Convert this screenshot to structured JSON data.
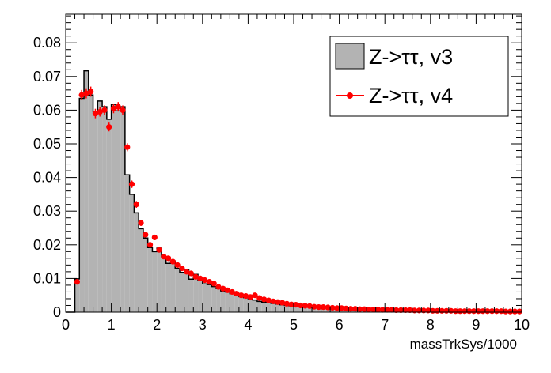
{
  "chart_data": {
    "type": "histogram",
    "xlabel": "massTrkSys/1000",
    "ylabel": "",
    "title": "",
    "xlim": [
      0,
      10
    ],
    "ylim": [
      0,
      0.0885
    ],
    "xticks": [
      "0",
      "1",
      "2",
      "3",
      "4",
      "5",
      "6",
      "7",
      "8",
      "9",
      "10"
    ],
    "yticks": [
      "0",
      "0.01",
      "0.02",
      "0.03",
      "0.04",
      "0.05",
      "0.06",
      "0.07",
      "0.08"
    ],
    "grid": false,
    "legend_position": "top-right",
    "bin_width": 0.1,
    "x_start": 0,
    "series": [
      {
        "name": "Z->ττ, v3",
        "style": "filled-step",
        "fill_color": "#b3b3b3",
        "line_color": "#000000",
        "values": [
          0,
          0,
          0.0099,
          0.0635,
          0.0717,
          0.0645,
          0.0595,
          0.0627,
          0.061,
          0.0573,
          0.0617,
          0.0598,
          0.061,
          0.0408,
          0.035,
          0.0295,
          0.0248,
          0.022,
          0.0192,
          0.018,
          0.019,
          0.0165,
          0.0145,
          0.0152,
          0.013,
          0.0118,
          0.0125,
          0.0098,
          0.0112,
          0.0094,
          0.0084,
          0.0082,
          0.0076,
          0.007,
          0.0063,
          0.006,
          0.0055,
          0.005,
          0.0046,
          0.0043,
          0.004,
          0.0036,
          0.0032,
          0.003,
          0.0028,
          0.0026,
          0.0024,
          0.0022,
          0.002,
          0.0019,
          0.0018,
          0.0017,
          0.0016,
          0.0015,
          0.0014,
          0.0013,
          0.0012,
          0.0012,
          0.0011,
          0.0011,
          0.001,
          0.001,
          0.0009,
          0.0009,
          0.0008,
          0.0008,
          0.0008,
          0.0007,
          0.0007,
          0.0007,
          0.0006,
          0.0006,
          0.0006,
          0.0006,
          0.0005,
          0.0005,
          0.0005,
          0.0005,
          0.0005,
          0.0004,
          0.0004,
          0.0004,
          0.0004,
          0.0004,
          0.0004,
          0.0003,
          0.0003,
          0.0003,
          0.0003,
          0.0003,
          0.0003,
          0.0003,
          0.0003,
          0.0003,
          0.0002,
          0.0002,
          0.0002,
          0.0002,
          0.0002,
          0.0002
        ]
      },
      {
        "name": "Z->ττ, v4",
        "style": "markers-errorbars",
        "color": "#ff0000",
        "values": [
          0,
          0,
          0.009,
          0.0645,
          0.065,
          0.0655,
          0.059,
          0.0595,
          0.06,
          0.055,
          0.0605,
          0.061,
          0.06,
          0.049,
          0.038,
          0.032,
          0.0265,
          0.023,
          0.02,
          0.0222,
          0.0185,
          0.0165,
          0.016,
          0.015,
          0.014,
          0.013,
          0.012,
          0.0115,
          0.0105,
          0.01,
          0.0095,
          0.009,
          0.0085,
          0.0075,
          0.007,
          0.0065,
          0.006,
          0.0055,
          0.005,
          0.0048,
          0.0045,
          0.005,
          0.0042,
          0.0038,
          0.0035,
          0.0032,
          0.003,
          0.0028,
          0.0025,
          0.0023,
          0.0022,
          0.002,
          0.0019,
          0.0018,
          0.0016,
          0.0015,
          0.0015,
          0.0014,
          0.0013,
          0.0012,
          0.0012,
          0.0011,
          0.001,
          0.001,
          0.0009,
          0.0009,
          0.0008,
          0.0008,
          0.0008,
          0.0007,
          0.0007,
          0.0007,
          0.0006,
          0.0006,
          0.0006,
          0.0006,
          0.0005,
          0.0005,
          0.0005,
          0.0005,
          0.0004,
          0.0004,
          0.0004,
          0.0004,
          0.0004,
          0.0003,
          0.0003,
          0.0003,
          0.0003,
          0.0003,
          0.0003,
          0.0003,
          0.0003,
          0.0003,
          0.0003,
          0.0003,
          0.0002,
          0.0002,
          0.0002,
          0.0002
        ],
        "errors": [
          0,
          0,
          0.0008,
          0.0015,
          0.0015,
          0.0015,
          0.0014,
          0.0014,
          0.0014,
          0.0013,
          0.0014,
          0.0014,
          0.0014,
          0.0012,
          0.0011,
          0.001,
          0.0009,
          0.0008,
          0.0008,
          0.0008,
          0.0007,
          0.0007,
          0.0007,
          0.0007,
          0.0006,
          0.0006,
          0.0006,
          0.0006,
          0.0006,
          0.0005,
          0.0005,
          0.0005,
          0.0005,
          0.0005,
          0.0004,
          0.0004,
          0.0004,
          0.0004,
          0.0004,
          0.0004,
          0.0004,
          0.0004,
          0.0003,
          0.0003,
          0.0003,
          0.0003,
          0.0003,
          0.0003,
          0.0003,
          0.0003,
          0.0003,
          0.0003,
          0.0002,
          0.0002,
          0.0002,
          0.0002,
          0.0002,
          0.0002,
          0.0002,
          0.0002,
          0.0002,
          0.0002,
          0.0002,
          0.0002,
          0.0002,
          0.0002,
          0.0002,
          0.0002,
          0.0002,
          0.0002,
          0.0002,
          0.0002,
          0.0002,
          0.0002,
          0.0002,
          0.0002,
          0.0002,
          0.0002,
          0.0002,
          0.0002,
          0.0002,
          0.0002,
          0.0002,
          0.0002,
          0.0002,
          0.0002,
          0.0002,
          0.0002,
          0.0002,
          0.0002,
          0.0002,
          0.0002,
          0.0002,
          0.0002,
          0.0002,
          0.0002,
          0.0002,
          0.0002,
          0.0002,
          0.0002
        ]
      }
    ]
  }
}
